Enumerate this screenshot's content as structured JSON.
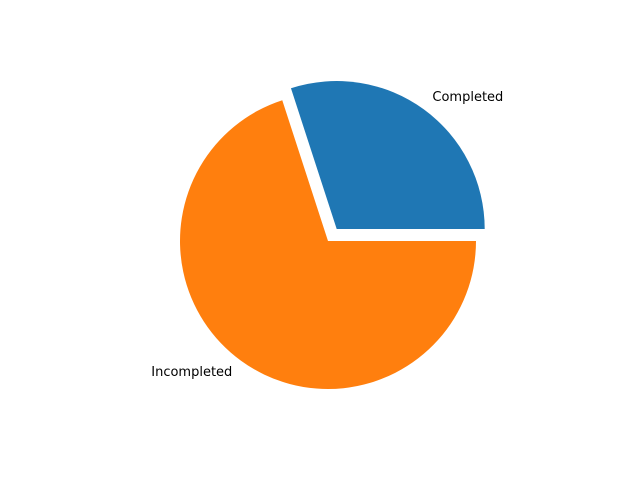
{
  "chart_data": {
    "type": "pie",
    "title": "",
    "labels": [
      "Completed",
      "Incompleted"
    ],
    "values": [
      30,
      70
    ],
    "explode": [
      0.1,
      0
    ],
    "start_angle": 0,
    "colors": [
      "#1f77b4",
      "#ff7f0e"
    ]
  }
}
